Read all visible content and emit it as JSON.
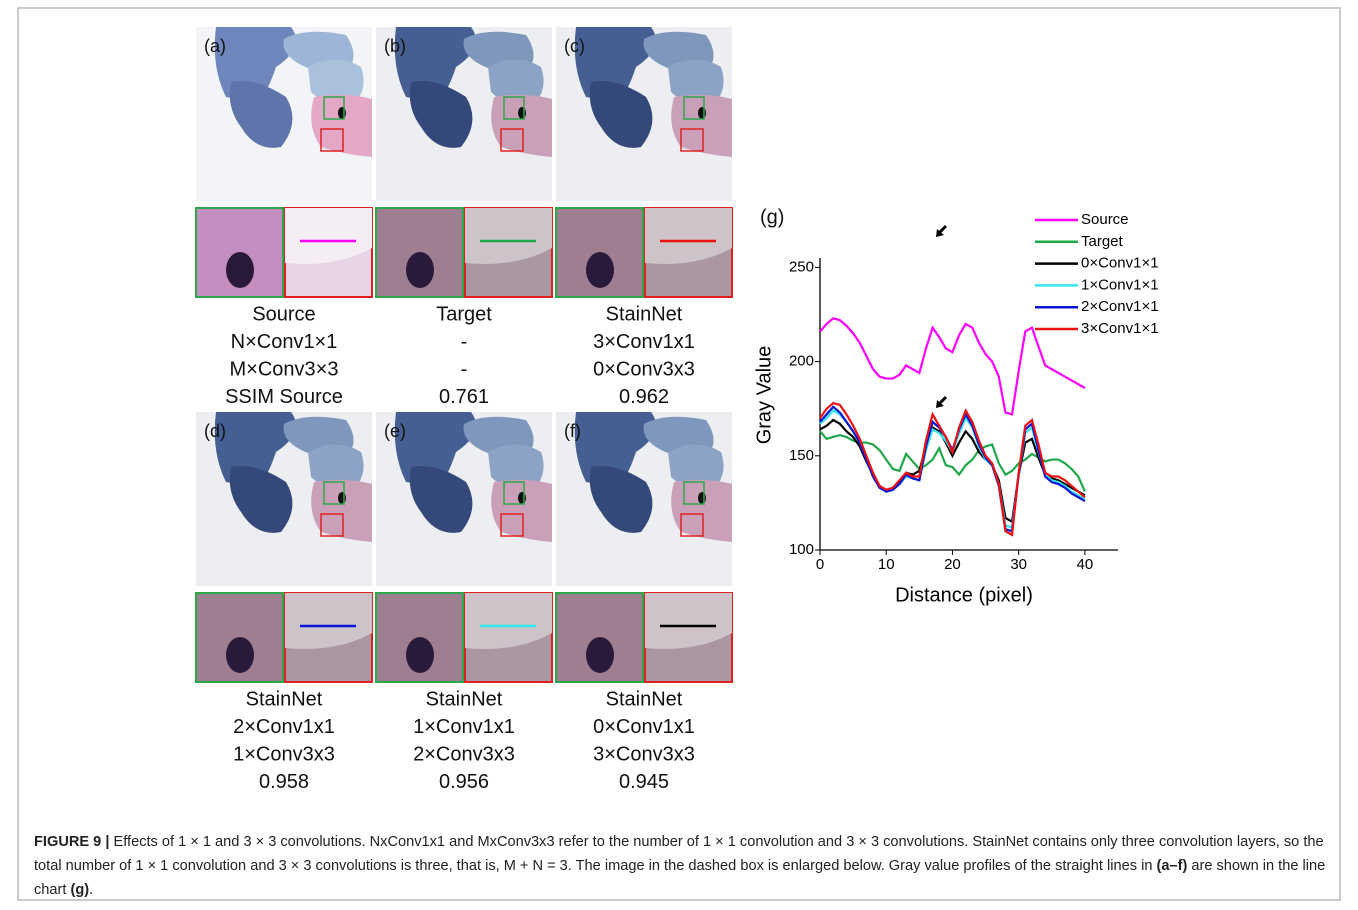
{
  "panels": [
    {
      "label": "(a)",
      "lines": [
        "Source",
        "N×Conv1×1",
        "M×Conv3×3",
        "SSIM Source"
      ]
    },
    {
      "label": "(b)",
      "lines": [
        "Target",
        "-",
        "-",
        "0.761"
      ]
    },
    {
      "label": "(c)",
      "lines": [
        "StainNet",
        "3×Conv1x1",
        "0×Conv3x3",
        "0.962"
      ]
    },
    {
      "label": "(d)",
      "lines": [
        "StainNet",
        "2×Conv1x1",
        "1×Conv3x3",
        "0.958"
      ]
    },
    {
      "label": "(e)",
      "lines": [
        "StainNet",
        "1×Conv1x1",
        "2×Conv3x3",
        "0.956"
      ]
    },
    {
      "label": "(f)",
      "lines": [
        "StainNet",
        "0×Conv1x1",
        "3×Conv3x3",
        "0.945"
      ]
    }
  ],
  "chart_data": {
    "type": "line",
    "annotation": "(g)",
    "xlabel": "Distance (pixel)",
    "ylabel": "Gray Value",
    "x": [
      0,
      1,
      2,
      3,
      4,
      5,
      6,
      7,
      8,
      9,
      10,
      11,
      12,
      13,
      14,
      15,
      16,
      17,
      18,
      19,
      20,
      21,
      22,
      23,
      24,
      25,
      26,
      27,
      28,
      29,
      30,
      31,
      32,
      33,
      34,
      35,
      36,
      37,
      38,
      39,
      40
    ],
    "xlim": [
      0,
      45
    ],
    "xticks": [
      0,
      10,
      20,
      30,
      40
    ],
    "ylim": [
      100,
      255
    ],
    "yticks": [
      100,
      150,
      200,
      250
    ],
    "legend": "upper right",
    "series": [
      {
        "name": "Source",
        "color": "#ff00ff",
        "values": [
          216,
          220,
          223,
          222,
          219,
          215,
          210,
          203,
          196,
          192,
          191,
          191,
          193,
          198,
          196,
          194,
          207,
          218,
          213,
          207,
          205,
          214,
          220,
          218,
          210,
          204,
          200,
          192,
          173,
          172,
          195,
          216,
          218,
          208,
          198,
          196,
          194,
          192,
          190,
          188,
          186
        ]
      },
      {
        "name": "Target",
        "color": "#1fa84a",
        "values": [
          163,
          159,
          160,
          161,
          160,
          158,
          157,
          157,
          156,
          153,
          148,
          143,
          142,
          151,
          147,
          143,
          145,
          148,
          154,
          145,
          144,
          140,
          145,
          148,
          153,
          155,
          156,
          146,
          140,
          142,
          146,
          148,
          151,
          149,
          147,
          148,
          148,
          146,
          143,
          139,
          131
        ]
      },
      {
        "name": "0×Conv1×1",
        "color": "#000000",
        "values": [
          164,
          166,
          169,
          167,
          163,
          160,
          155,
          147,
          140,
          134,
          131,
          132,
          136,
          141,
          140,
          142,
          155,
          165,
          163,
          157,
          150,
          157,
          163,
          159,
          152,
          148,
          145,
          137,
          117,
          115,
          140,
          157,
          159,
          149,
          140,
          138,
          137,
          135,
          133,
          131,
          129
        ]
      },
      {
        "name": "1×Conv1×1",
        "color": "#33e6f0",
        "values": [
          167,
          170,
          174,
          172,
          168,
          163,
          157,
          148,
          140,
          133,
          131,
          132,
          135,
          139,
          138,
          137,
          153,
          164,
          162,
          158,
          152,
          162,
          170,
          165,
          155,
          148,
          145,
          135,
          113,
          112,
          140,
          162,
          165,
          152,
          140,
          137,
          136,
          134,
          131,
          129,
          127
        ]
      },
      {
        "name": "2×Conv1×1",
        "color": "#0a14d6",
        "values": [
          168,
          172,
          176,
          173,
          168,
          163,
          157,
          148,
          139,
          133,
          131,
          132,
          135,
          140,
          138,
          137,
          155,
          168,
          165,
          160,
          153,
          164,
          172,
          166,
          156,
          149,
          145,
          134,
          111,
          110,
          140,
          164,
          167,
          153,
          139,
          136,
          135,
          133,
          130,
          128,
          126
        ]
      },
      {
        "name": "3×Conv1×1",
        "color": "#ee1111",
        "values": [
          170,
          175,
          178,
          177,
          172,
          166,
          159,
          150,
          141,
          134,
          132,
          133,
          137,
          141,
          139,
          139,
          158,
          172,
          166,
          160,
          152,
          165,
          174,
          168,
          158,
          150,
          146,
          135,
          110,
          108,
          141,
          166,
          169,
          156,
          141,
          139,
          139,
          137,
          134,
          131,
          128
        ]
      }
    ]
  },
  "caption": {
    "label": "FIGURE 9 |",
    "text1": " Effects of 1 × 1 and 3 × 3 convolutions. NxConv1x1 and MxConv3x3 refer to the number of 1 × 1 convolution and 3 × 3 convolutions. StainNet contains only three convolution layers, so the total number of 1 × 1 convolution and 3 × 3 convolutions is three, that is, M + N = 3. The image in the dashed box is enlarged below. Gray value profiles of the straight lines in ",
    "bold1": "(a–f)",
    "text2": " are shown in the line chart ",
    "bold2": "(g)",
    "text3": "."
  }
}
